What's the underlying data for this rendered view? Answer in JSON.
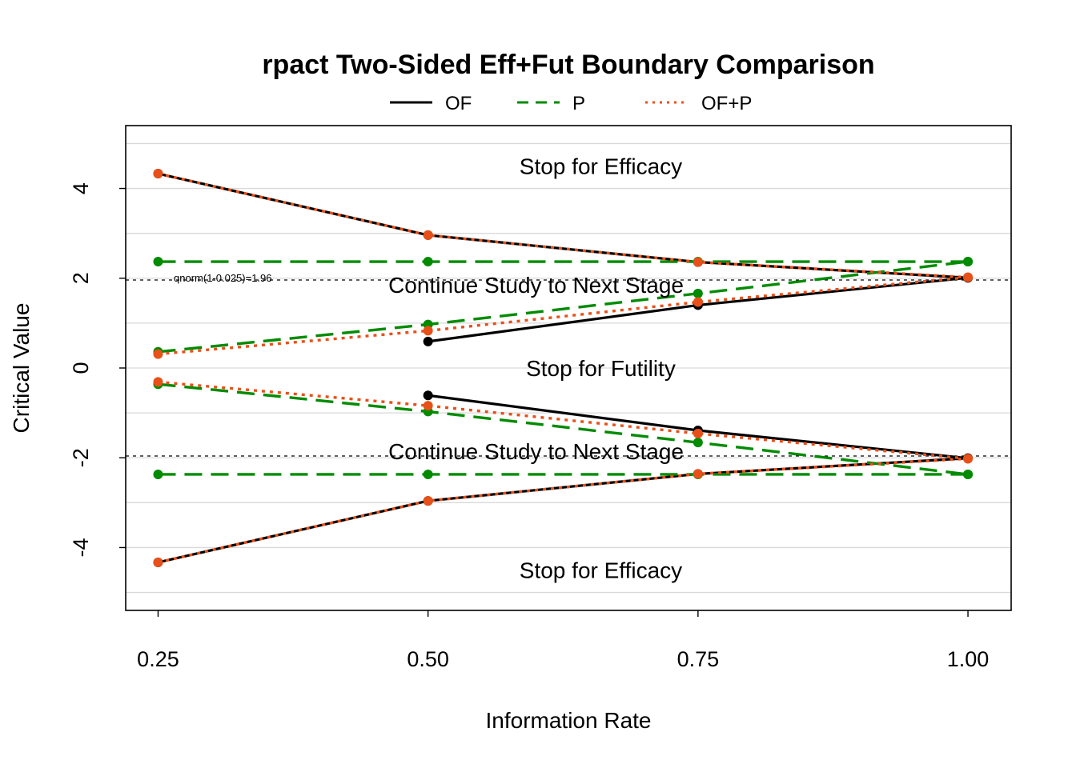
{
  "chart_data": {
    "type": "line",
    "title": "rpact Two-Sided Eff+Fut Boundary Comparison",
    "xlabel": "Information Rate",
    "ylabel": "Critical Value",
    "xlim": [
      0.22,
      1.04
    ],
    "ylim": [
      -5.4,
      5.4
    ],
    "x_ticks": [
      0.25,
      0.5,
      0.75,
      1.0
    ],
    "x_tick_labels": [
      "0.25",
      "0.50",
      "0.75",
      "1.00"
    ],
    "y_ticks": [
      -4,
      -2,
      0,
      2,
      4
    ],
    "y_tick_labels": [
      "-4",
      "-2",
      "0",
      "2",
      "4"
    ],
    "grid": true,
    "legend_position": "top",
    "legend": [
      {
        "name": "OF",
        "color": "#000000",
        "dash": "solid"
      },
      {
        "name": "P",
        "color": "#008B00",
        "dash": "dashed"
      },
      {
        "name": "OF+P",
        "color": "#E8501A",
        "dash": "dotted"
      }
    ],
    "series": [
      {
        "legend": "OF",
        "color": "#000000",
        "dash": "solid",
        "x": [
          0.25,
          0.5,
          0.75,
          1.0
        ],
        "y": [
          4.33,
          2.96,
          2.36,
          2.01
        ]
      },
      {
        "legend": "OF",
        "color": "#000000",
        "dash": "solid",
        "x": [
          0.25,
          0.5,
          0.75,
          1.0
        ],
        "y": [
          -4.33,
          -2.96,
          -2.36,
          -2.01
        ]
      },
      {
        "legend": "OF",
        "color": "#000000",
        "dash": "solid",
        "x": [
          0.5,
          0.75,
          1.0
        ],
        "y": [
          0.59,
          1.4,
          2.01
        ]
      },
      {
        "legend": "OF",
        "color": "#000000",
        "dash": "solid",
        "x": [
          0.5,
          0.75,
          1.0
        ],
        "y": [
          -0.61,
          -1.39,
          -2.01
        ]
      },
      {
        "legend": "P",
        "color": "#008B00",
        "dash": "dashed",
        "x": [
          0.25,
          0.5,
          0.75,
          1.0
        ],
        "y": [
          2.37,
          2.37,
          2.37,
          2.37
        ]
      },
      {
        "legend": "P",
        "color": "#008B00",
        "dash": "dashed",
        "x": [
          0.25,
          0.5,
          0.75,
          1.0
        ],
        "y": [
          -2.37,
          -2.37,
          -2.37,
          -2.37
        ]
      },
      {
        "legend": "P",
        "color": "#008B00",
        "dash": "dashed",
        "x": [
          0.25,
          0.5,
          0.75,
          1.0
        ],
        "y": [
          0.36,
          0.97,
          1.66,
          2.37
        ]
      },
      {
        "legend": "P",
        "color": "#008B00",
        "dash": "dashed",
        "x": [
          0.25,
          0.5,
          0.75,
          1.0
        ],
        "y": [
          -0.36,
          -0.97,
          -1.66,
          -2.37
        ]
      },
      {
        "legend": "OF+P",
        "color": "#E8501A",
        "dash": "dotted",
        "x": [
          0.25,
          0.5,
          0.75,
          1.0
        ],
        "y": [
          4.33,
          2.96,
          2.36,
          2.02
        ]
      },
      {
        "legend": "OF+P",
        "color": "#E8501A",
        "dash": "dotted",
        "x": [
          0.25,
          0.5,
          0.75,
          1.0
        ],
        "y": [
          -4.33,
          -2.96,
          -2.36,
          -2.02
        ]
      },
      {
        "legend": "OF+P",
        "color": "#E8501A",
        "dash": "dotted",
        "x": [
          0.25,
          0.5,
          0.75,
          1.0
        ],
        "y": [
          0.31,
          0.83,
          1.47,
          2.02
        ]
      },
      {
        "legend": "OF+P",
        "color": "#E8501A",
        "dash": "dotted",
        "x": [
          0.25,
          0.5,
          0.75,
          1.0
        ],
        "y": [
          -0.31,
          -0.84,
          -1.46,
          -2.02
        ]
      }
    ],
    "reference_lines": [
      {
        "y": 1.96,
        "label": "qnorm(1-0.025)=1.96"
      },
      {
        "y": -1.96,
        "label": ""
      }
    ],
    "annotations": [
      {
        "text": "Stop for Efficacy",
        "x": 0.66,
        "y": 4.5
      },
      {
        "text": "Continue Study to Next Stage",
        "x": 0.6,
        "y": 1.85
      },
      {
        "text": "Stop for Futility",
        "x": 0.66,
        "y": 0.0
      },
      {
        "text": "Continue Study to Next Stage",
        "x": 0.6,
        "y": -1.85
      },
      {
        "text": "Stop for Efficacy",
        "x": 0.66,
        "y": -4.5
      }
    ]
  }
}
